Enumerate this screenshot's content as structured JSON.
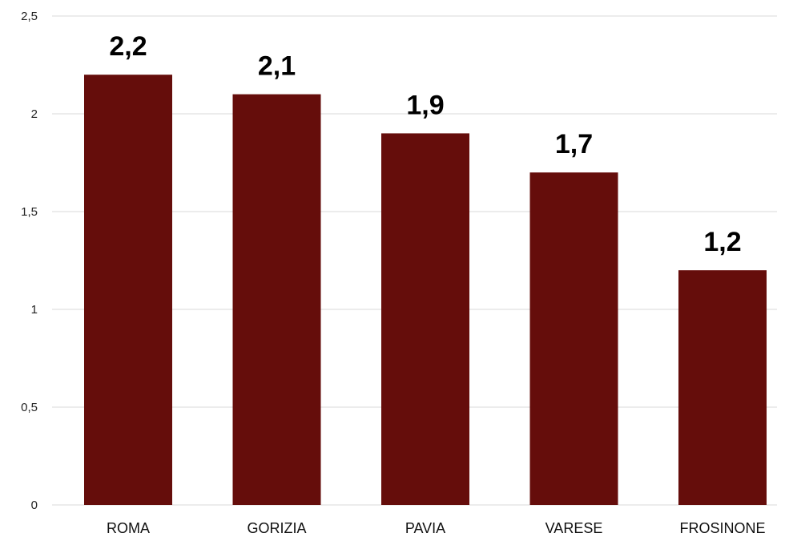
{
  "chart_data": {
    "type": "bar",
    "categories": [
      "ROMA",
      "GORIZIA",
      "PAVIA",
      "VARESE",
      "FROSINONE"
    ],
    "values": [
      2.2,
      2.1,
      1.9,
      1.7,
      1.2
    ],
    "data_labels": [
      "2,2",
      "2,1",
      "1,9",
      "1,7",
      "1,2"
    ],
    "ylim": [
      0,
      2.5
    ],
    "yticks": [
      0,
      0.5,
      1,
      1.5,
      2,
      2.5
    ],
    "ytick_labels": [
      "0",
      "0,5",
      "1",
      "1,5",
      "2",
      "2,5"
    ],
    "grid": true,
    "legend": "none",
    "bar_color": "#650d0b"
  }
}
